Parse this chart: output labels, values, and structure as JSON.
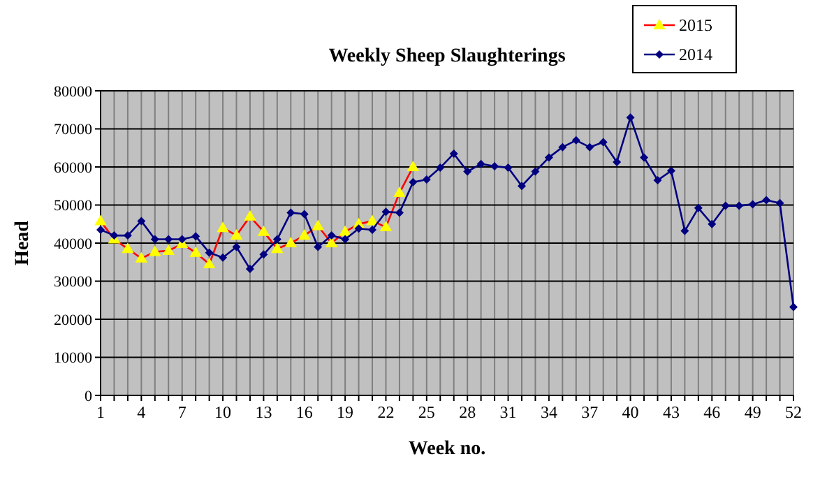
{
  "chart_data": {
    "type": "line",
    "title": "Weekly Sheep Slaughterings",
    "xlabel": "Week no.",
    "ylabel": "Head",
    "categories": [
      "1",
      null,
      null,
      "4",
      null,
      null,
      "7",
      null,
      null,
      "10",
      null,
      null,
      "13",
      null,
      null,
      "16",
      null,
      null,
      "19",
      null,
      null,
      "22",
      null,
      null,
      "25",
      null,
      null,
      "28",
      null,
      null,
      "31",
      null,
      null,
      "34",
      null,
      null,
      "37",
      null,
      null,
      "40",
      null,
      null,
      "43",
      null,
      null,
      "46",
      null,
      null,
      "49",
      null,
      null,
      "52"
    ],
    "series": [
      {
        "name": "2015",
        "color": "#ff0000",
        "marker": "triangle",
        "values": [
          45800,
          41000,
          38500,
          36000,
          37700,
          38000,
          39800,
          37500,
          34500,
          44000,
          42000,
          47000,
          43000,
          38500,
          40000,
          42000,
          44500,
          40000,
          43000,
          45000,
          45800,
          44200,
          53200,
          60000,
          null,
          null,
          null,
          null,
          null,
          null,
          null,
          null,
          null,
          null,
          null,
          null,
          null,
          null,
          null,
          null,
          null,
          null,
          null,
          null,
          null,
          null,
          null,
          null,
          null,
          null,
          null,
          null
        ]
      },
      {
        "name": "2014",
        "color": "#000080",
        "marker": "diamond",
        "values": [
          43500,
          42000,
          42000,
          45800,
          41000,
          41000,
          41000,
          41800,
          37500,
          36200,
          39000,
          33200,
          37000,
          41000,
          48000,
          47600,
          39000,
          42000,
          41000,
          43800,
          43500,
          48200,
          48000,
          56000,
          56700,
          59800,
          63500,
          58800,
          60800,
          60200,
          59800,
          55000,
          58800,
          62500,
          65200,
          67000,
          65200,
          66500,
          61300,
          73000,
          62500,
          56500,
          59000,
          43200,
          49200,
          45000,
          49800,
          49800,
          50200,
          51300,
          50500,
          23200
        ]
      }
    ],
    "ylim": [
      0,
      80000
    ],
    "yticks": [
      0,
      10000,
      20000,
      30000,
      40000,
      50000,
      60000,
      70000,
      80000
    ],
    "grid": true,
    "legend": "top right"
  }
}
